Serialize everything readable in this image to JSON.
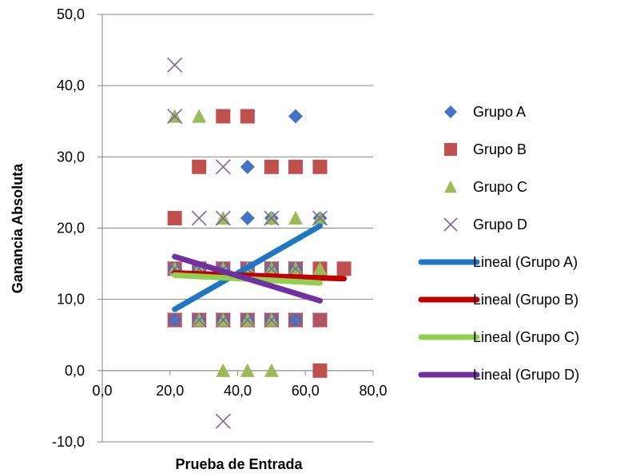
{
  "chart_data": {
    "type": "scatter",
    "xlabel": "Prueba de Entrada",
    "ylabel": "Ganancia Absoluta",
    "xlim": [
      0,
      80
    ],
    "ylim": [
      -10,
      50
    ],
    "x_ticks": [
      "0,0",
      "20,0",
      "40,0",
      "60,0",
      "80,0"
    ],
    "x_tick_values": [
      0,
      20,
      40,
      60,
      80
    ],
    "y_ticks": [
      "-10,0",
      "0,0",
      "10,0",
      "20,0",
      "30,0",
      "40,0",
      "50,0"
    ],
    "y_tick_values": [
      -10,
      0,
      10,
      20,
      30,
      40,
      50
    ],
    "grid": "horizontal",
    "legend_position": "right",
    "series": [
      {
        "name": "Grupo A",
        "marker": "diamond",
        "color": "#4472C4",
        "points": [
          [
            57.1,
            35.7
          ],
          [
            42.9,
            28.6
          ],
          [
            42.9,
            21.4
          ],
          [
            50.0,
            21.4
          ],
          [
            64.3,
            21.4
          ],
          [
            21.4,
            14.3
          ],
          [
            28.6,
            14.3
          ],
          [
            35.7,
            14.3
          ],
          [
            42.9,
            14.3
          ],
          [
            50.0,
            14.3
          ],
          [
            57.1,
            14.3
          ],
          [
            21.4,
            7.1
          ],
          [
            28.6,
            7.1
          ],
          [
            35.7,
            7.1
          ],
          [
            42.9,
            7.1
          ],
          [
            50.0,
            7.1
          ],
          [
            57.1,
            7.1
          ]
        ]
      },
      {
        "name": "Grupo B",
        "marker": "square",
        "color": "#C0504D",
        "points": [
          [
            35.7,
            35.7
          ],
          [
            42.9,
            35.7
          ],
          [
            28.6,
            28.6
          ],
          [
            50.0,
            28.6
          ],
          [
            57.1,
            28.6
          ],
          [
            64.3,
            28.6
          ],
          [
            21.4,
            21.4
          ],
          [
            21.4,
            14.3
          ],
          [
            28.6,
            14.3
          ],
          [
            35.7,
            14.3
          ],
          [
            42.9,
            14.3
          ],
          [
            50.0,
            14.3
          ],
          [
            57.1,
            14.3
          ],
          [
            64.3,
            14.3
          ],
          [
            71.4,
            14.3
          ],
          [
            21.4,
            7.1
          ],
          [
            28.6,
            7.1
          ],
          [
            35.7,
            7.1
          ],
          [
            42.9,
            7.1
          ],
          [
            50.0,
            7.1
          ],
          [
            57.1,
            7.1
          ],
          [
            64.3,
            7.1
          ],
          [
            64.3,
            0.0
          ]
        ]
      },
      {
        "name": "Grupo C",
        "marker": "triangle",
        "color": "#9BBB59",
        "points": [
          [
            21.4,
            35.7
          ],
          [
            28.6,
            35.7
          ],
          [
            35.7,
            21.4
          ],
          [
            50.0,
            21.4
          ],
          [
            57.1,
            21.4
          ],
          [
            64.3,
            21.4
          ],
          [
            21.4,
            14.3
          ],
          [
            28.6,
            14.3
          ],
          [
            35.7,
            14.3
          ],
          [
            42.9,
            14.3
          ],
          [
            50.0,
            14.3
          ],
          [
            57.1,
            14.3
          ],
          [
            64.3,
            14.3
          ],
          [
            28.6,
            7.1
          ],
          [
            35.7,
            7.1
          ],
          [
            42.9,
            7.1
          ],
          [
            50.0,
            7.1
          ],
          [
            35.7,
            0.0
          ],
          [
            42.9,
            0.0
          ],
          [
            50.0,
            0.0
          ]
        ]
      },
      {
        "name": "Grupo D",
        "marker": "x",
        "color": "#8064A2",
        "points": [
          [
            21.4,
            42.9
          ],
          [
            21.4,
            35.7
          ],
          [
            35.7,
            28.6
          ],
          [
            28.6,
            21.4
          ],
          [
            35.7,
            21.4
          ],
          [
            50.0,
            21.4
          ],
          [
            64.3,
            21.4
          ],
          [
            21.4,
            14.3
          ],
          [
            28.6,
            14.3
          ],
          [
            35.7,
            14.3
          ],
          [
            42.9,
            14.3
          ],
          [
            50.0,
            14.3
          ],
          [
            57.1,
            14.3
          ],
          [
            21.4,
            7.1
          ],
          [
            28.6,
            7.1
          ],
          [
            35.7,
            7.1
          ],
          [
            42.9,
            7.1
          ],
          [
            50.0,
            7.1
          ],
          [
            57.1,
            7.1
          ],
          [
            64.3,
            7.1
          ],
          [
            35.7,
            -7.1
          ]
        ]
      }
    ],
    "trendlines": [
      {
        "name": "Lineal (Grupo A)",
        "color": "#1F77C4",
        "x": [
          21.4,
          64.3
        ],
        "y": [
          8.6,
          20.3
        ]
      },
      {
        "name": "Lineal (Grupo B)",
        "color": "#C00000",
        "x": [
          21.4,
          71.4
        ],
        "y": [
          13.7,
          12.9
        ]
      },
      {
        "name": "Lineal (Grupo C)",
        "color": "#92D050",
        "x": [
          21.4,
          64.3
        ],
        "y": [
          13.4,
          12.3
        ]
      },
      {
        "name": "Lineal (Grupo D)",
        "color": "#7030A0",
        "x": [
          21.4,
          64.3
        ],
        "y": [
          16.0,
          9.8
        ]
      }
    ]
  }
}
